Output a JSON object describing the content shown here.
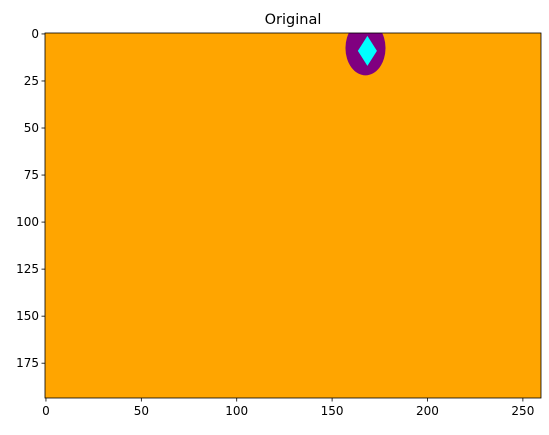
{
  "chart_data": {
    "type": "heatmap",
    "title": "Original",
    "xlabel": "",
    "ylabel": "",
    "image_size": {
      "width": 260,
      "height": 194
    },
    "xlim": [
      0,
      260
    ],
    "ylim": [
      194,
      0
    ],
    "y_axis_inverted": true,
    "grid": false,
    "x_ticks": [
      0,
      50,
      100,
      150,
      200,
      250
    ],
    "y_ticks": [
      0,
      25,
      50,
      75,
      100,
      125,
      150,
      175
    ],
    "colors": {
      "background": "#ffa500",
      "ring": "#800080",
      "core": "#00ffff"
    },
    "regions": [
      {
        "label": "background",
        "color": "#ffa500",
        "shape": "fill"
      },
      {
        "label": "ring",
        "color": "#800080",
        "shape": "ellipse",
        "center": [
          167.5,
          7.5
        ],
        "radius_x": 10.5,
        "radius_y": 14.5
      },
      {
        "label": "core",
        "color": "#00ffff",
        "shape": "diamond",
        "center": [
          168.5,
          9.0
        ],
        "radius_x": 5.0,
        "radius_y": 8.0
      }
    ]
  }
}
